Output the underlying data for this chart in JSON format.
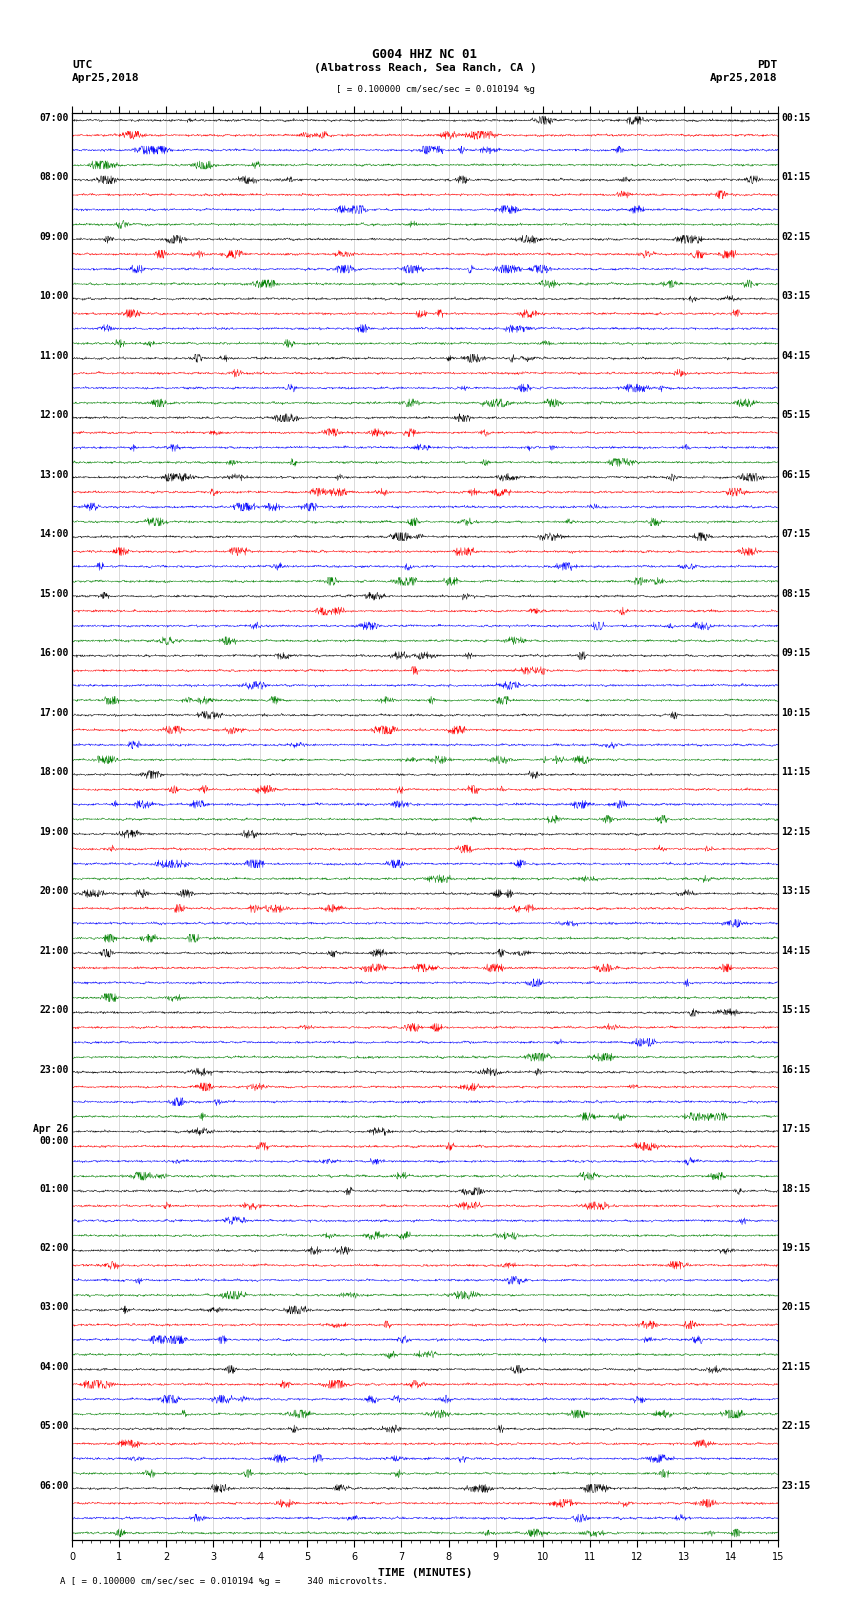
{
  "title_line1": "G004 HHZ NC 01",
  "title_line2": "(Albatross Reach, Sea Ranch, CA )",
  "scale_text": "= 0.100000 cm/sec/sec = 0.010194 %g",
  "footer_text": "A [ = 0.100000 cm/sec/sec = 0.010194 %g =     340 microvolts.",
  "label_left": "UTC",
  "label_right": "PDT",
  "date_left": "Apr25,2018",
  "date_right": "Apr25,2018",
  "xlabel": "TIME (MINUTES)",
  "xlim": [
    0,
    15
  ],
  "xticks": [
    0,
    1,
    2,
    3,
    4,
    5,
    6,
    7,
    8,
    9,
    10,
    11,
    12,
    13,
    14,
    15
  ],
  "colors": [
    "black",
    "red",
    "blue",
    "green"
  ],
  "n_rows": 96,
  "bg_color": "white",
  "trace_amplitude": 0.3,
  "noise_amplitude": 0.08,
  "font_size_title": 9,
  "font_size_label": 8,
  "font_size_tick": 7,
  "left_times_utc": [
    "07:00",
    "08:00",
    "09:00",
    "10:00",
    "11:00",
    "12:00",
    "13:00",
    "14:00",
    "15:00",
    "16:00",
    "17:00",
    "18:00",
    "19:00",
    "20:00",
    "21:00",
    "22:00",
    "23:00",
    "Apr 26\n00:00",
    "01:00",
    "02:00",
    "03:00",
    "04:00",
    "05:00",
    "06:00"
  ],
  "right_times_pdt": [
    "00:15",
    "01:15",
    "02:15",
    "03:15",
    "04:15",
    "05:15",
    "06:15",
    "07:15",
    "08:15",
    "09:15",
    "10:15",
    "11:15",
    "12:15",
    "13:15",
    "14:15",
    "15:15",
    "16:15",
    "17:15",
    "18:15",
    "19:15",
    "20:15",
    "21:15",
    "22:15",
    "23:15"
  ]
}
